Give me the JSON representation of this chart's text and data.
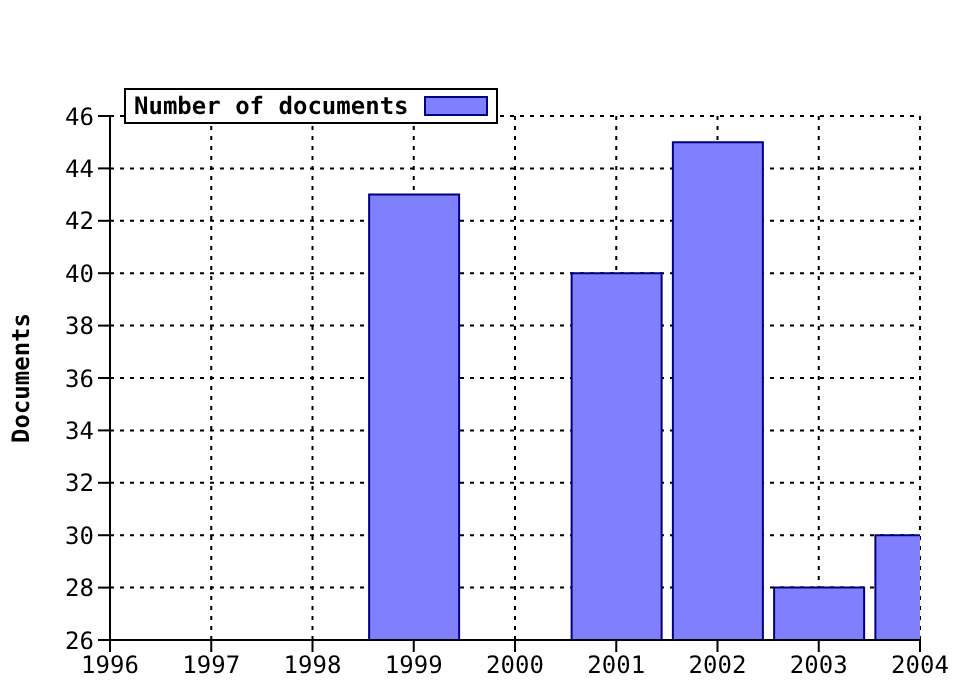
{
  "chart_data": {
    "type": "bar",
    "ylabel": "Documents",
    "x": [
      1999,
      2001,
      2002,
      2003,
      2004
    ],
    "series": [
      {
        "name": "Number of documents",
        "color": "#8080ff",
        "values": [
          43,
          40,
          45,
          28,
          30
        ]
      }
    ],
    "xlim": [
      1996,
      2004
    ],
    "xticks": [
      1996,
      1997,
      1998,
      1999,
      2000,
      2001,
      2002,
      2003,
      2004
    ],
    "ylim": [
      26,
      46
    ],
    "yticks": [
      26,
      28,
      30,
      32,
      34,
      36,
      38,
      40,
      42,
      44,
      46
    ],
    "grid": true,
    "legend": "top left"
  }
}
